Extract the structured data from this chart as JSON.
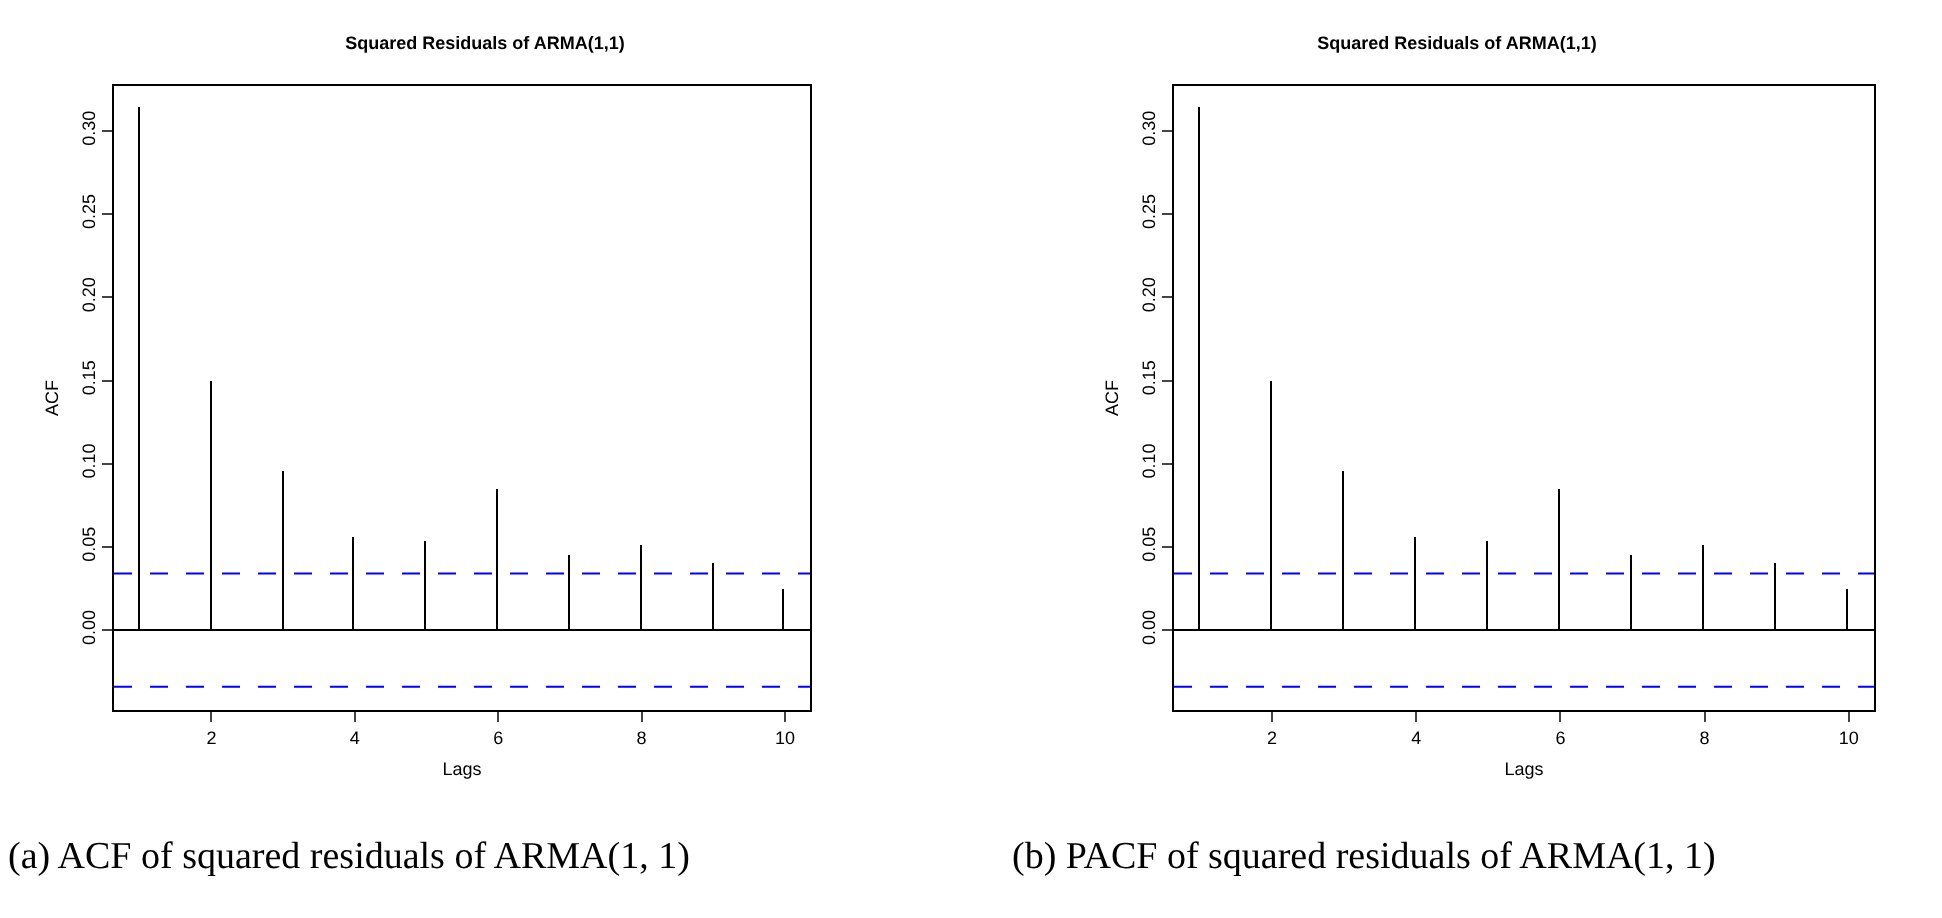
{
  "chart_data": [
    {
      "type": "bar",
      "title": "Squared Residuals of ARMA(1,1)",
      "xlabel": "Lags",
      "ylabel": "ACF",
      "color": "#000000",
      "x": [
        1,
        2,
        3,
        4,
        5,
        6,
        7,
        8,
        9,
        10
      ],
      "values": [
        0.314,
        0.149,
        0.095,
        0.055,
        0.053,
        0.084,
        0.045,
        0.051,
        0.04,
        0.024
      ],
      "xlim": [
        0.64,
        10.35
      ],
      "xticks": [
        2,
        4,
        6,
        8,
        10
      ],
      "ylim": [
        -0.048,
        0.327
      ],
      "yticks": [
        {
          "value": 0,
          "label": "0.00"
        },
        {
          "value": 0.05,
          "label": "0.05"
        },
        {
          "value": 0.1,
          "label": "0.10"
        },
        {
          "value": 0.15,
          "label": "0.15"
        },
        {
          "value": 0.2,
          "label": "0.20"
        },
        {
          "value": 0.25,
          "label": "0.25"
        },
        {
          "value": 0.3,
          "label": "0.30"
        }
      ],
      "ref_lines": [
        {
          "axis": "y",
          "value": 0,
          "color": "#000000",
          "line_style": "solid"
        },
        {
          "axis": "y",
          "value": 0.034,
          "color": "#0000ff",
          "line_style": "dashed"
        },
        {
          "axis": "y",
          "value": -0.034,
          "color": "#0000ff",
          "line_style": "dashed"
        }
      ],
      "annotations": [
        "(a) ACF of squared residuals of ARMA(1, 1)"
      ]
    },
    {
      "type": "bar",
      "title": "Squared Residuals of ARMA(1,1)",
      "xlabel": "Lags",
      "ylabel": "ACF",
      "color": "#000000",
      "x": [
        1,
        2,
        3,
        4,
        5,
        6,
        7,
        8,
        9,
        10
      ],
      "values": [
        0.314,
        0.149,
        0.095,
        0.055,
        0.053,
        0.084,
        0.045,
        0.051,
        0.04,
        0.024
      ],
      "xlim": [
        0.64,
        10.35
      ],
      "xticks": [
        2,
        4,
        6,
        8,
        10
      ],
      "ylim": [
        -0.048,
        0.327
      ],
      "yticks": [
        {
          "value": 0,
          "label": "0.00"
        },
        {
          "value": 0.05,
          "label": "0.05"
        },
        {
          "value": 0.1,
          "label": "0.10"
        },
        {
          "value": 0.15,
          "label": "0.15"
        },
        {
          "value": 0.2,
          "label": "0.20"
        },
        {
          "value": 0.25,
          "label": "0.25"
        },
        {
          "value": 0.3,
          "label": "0.30"
        }
      ],
      "ref_lines": [
        {
          "axis": "y",
          "value": 0,
          "color": "#000000",
          "line_style": "solid"
        },
        {
          "axis": "y",
          "value": 0.034,
          "color": "#0000ff",
          "line_style": "dashed"
        },
        {
          "axis": "y",
          "value": -0.034,
          "color": "#0000ff",
          "line_style": "dashed"
        }
      ],
      "annotations": [
        "(b) PACF of squared residuals of ARMA(1, 1)"
      ]
    }
  ]
}
